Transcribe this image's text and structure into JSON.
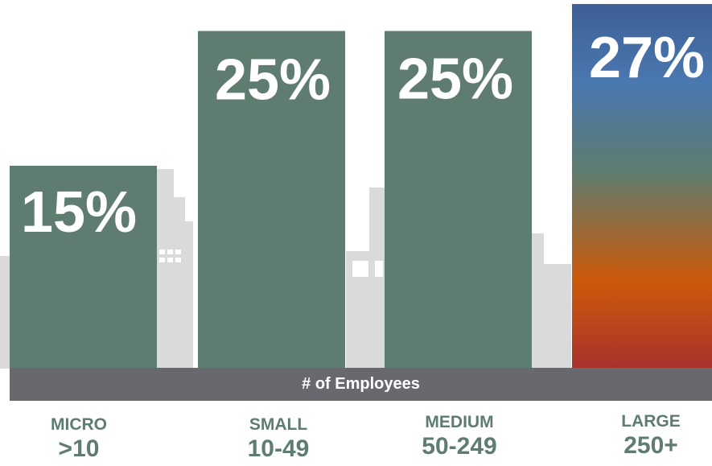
{
  "chart_data": {
    "type": "bar",
    "categories": [
      {
        "name": "MICRO",
        "range": ">10"
      },
      {
        "name": "SMALL",
        "range": "10-49"
      },
      {
        "name": "MEDIUM",
        "range": "50-249"
      },
      {
        "name": "LARGE",
        "range": "250+"
      }
    ],
    "values": [
      15,
      25,
      25,
      27
    ],
    "value_labels": [
      "15%",
      "25%",
      "25%",
      "27%"
    ],
    "unit": "%",
    "xlabel": "# of Employees",
    "ylabel": "",
    "title": "",
    "ylim": [
      0,
      27
    ],
    "grid": false,
    "legend": "none",
    "colors": {
      "bar": "#5e7c6f",
      "gradient": [
        "#3d5f96",
        "#4a78b0",
        "#5e7c6f",
        "#cc5a0a",
        "#a8322c"
      ],
      "axis_band": "#68686f",
      "skyline": "#dadada",
      "category_text": "#5e7c6f"
    }
  }
}
